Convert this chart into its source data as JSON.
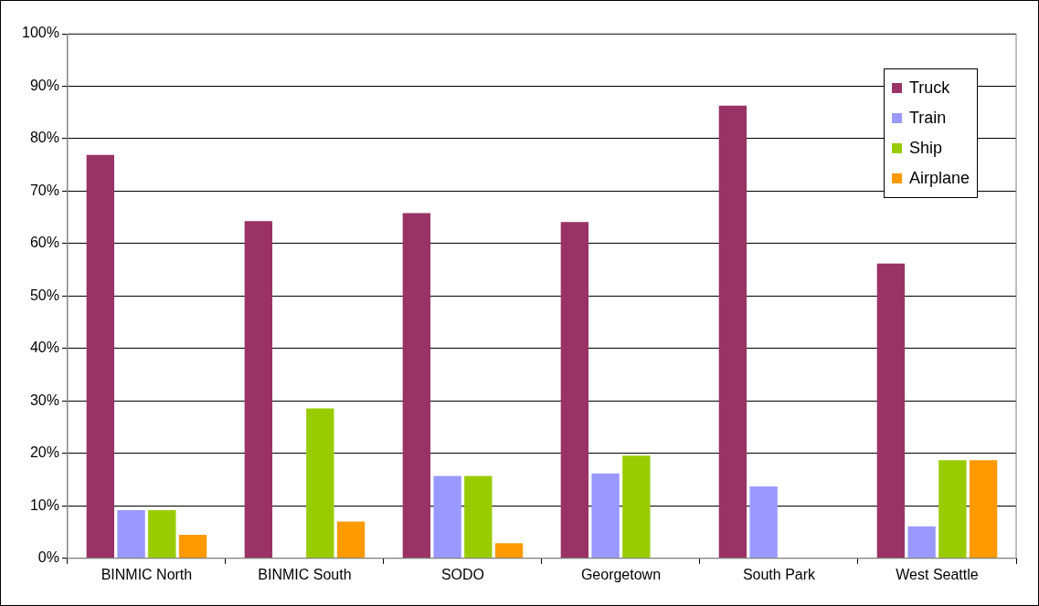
{
  "chart_data": {
    "type": "bar",
    "categories": [
      "BINMIC North",
      "BINMIC South",
      "SODO",
      "Georgetown",
      "South Park",
      "West Seattle"
    ],
    "series": [
      {
        "name": "Truck",
        "color": "#993366",
        "values": [
          76.9,
          64.3,
          65.8,
          64.1,
          86.3,
          56.2
        ]
      },
      {
        "name": "Train",
        "color": "#9999ff",
        "values": [
          9.2,
          0,
          15.7,
          16.2,
          13.7,
          6.1
        ]
      },
      {
        "name": "Ship",
        "color": "#99cc00",
        "values": [
          9.2,
          28.6,
          15.7,
          19.6,
          0,
          18.7
        ]
      },
      {
        "name": "Airplane",
        "color": "#ff9900",
        "values": [
          4.5,
          7.0,
          2.9,
          0,
          0,
          18.7
        ]
      }
    ],
    "ylim": [
      0,
      100
    ],
    "yticks": [
      {
        "value": 0,
        "label": "0%"
      },
      {
        "value": 10,
        "label": "10%"
      },
      {
        "value": 20,
        "label": "20%"
      },
      {
        "value": 30,
        "label": "30%"
      },
      {
        "value": 40,
        "label": "40%"
      },
      {
        "value": 50,
        "label": "50%"
      },
      {
        "value": 60,
        "label": "60%"
      },
      {
        "value": 70,
        "label": "70%"
      },
      {
        "value": 80,
        "label": "80%"
      },
      {
        "value": 90,
        "label": "90%"
      },
      {
        "value": 100,
        "label": "100%"
      }
    ],
    "grid": "y",
    "legend": "top right"
  }
}
